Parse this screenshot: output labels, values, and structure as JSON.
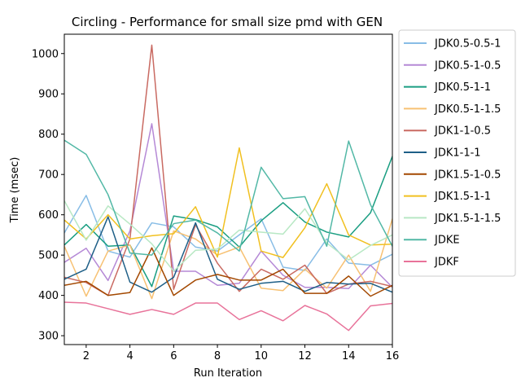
{
  "chart_data": {
    "type": "line",
    "title": "Circling - Performance for small size pmd with GEN",
    "xlabel": "Run Iteration",
    "ylabel": "Time (msec)",
    "xlim": [
      1,
      16
    ],
    "ylim": [
      278,
      1048
    ],
    "xticks": [
      2,
      4,
      6,
      8,
      10,
      12,
      14,
      16
    ],
    "yticks": [
      300,
      400,
      500,
      600,
      700,
      800,
      900,
      1000
    ],
    "grid": false,
    "legend_position": "outside-right",
    "x": [
      1,
      2,
      3,
      4,
      5,
      6,
      7,
      8,
      9,
      10,
      11,
      12,
      13,
      14,
      15,
      16
    ],
    "series": [
      {
        "name": "JDK0.5-0.5-1",
        "color": "#88bde6",
        "values": [
          555,
          648,
          510,
          495,
          580,
          570,
          520,
          510,
          550,
          590,
          470,
          462,
          540,
          480,
          475,
          502
        ]
      },
      {
        "name": "JDK0.5-1-0.5",
        "color": "#b589d6",
        "values": [
          482,
          517,
          437,
          560,
          826,
          460,
          460,
          425,
          430,
          510,
          450,
          420,
          420,
          417,
          475,
          420
        ]
      },
      {
        "name": "JDK0.5-1-1",
        "color": "#1a9e82",
        "values": [
          525,
          576,
          522,
          525,
          422,
          597,
          588,
          570,
          520,
          585,
          630,
          582,
          557,
          545,
          605,
          745
        ]
      },
      {
        "name": "JDK0.5-1-1.5",
        "color": "#f7c173",
        "values": [
          522,
          398,
          510,
          525,
          392,
          560,
          540,
          500,
          520,
          418,
          412,
          465,
          418,
          500,
          410,
          590
        ]
      },
      {
        "name": "JDK1-1-0.5",
        "color": "#c96a62",
        "values": [
          445,
          432,
          400,
          540,
          1021,
          415,
          575,
          480,
          410,
          465,
          440,
          475,
          405,
          428,
          435,
          422
        ]
      },
      {
        "name": "JDK1-1-1",
        "color": "#1e5f87",
        "values": [
          440,
          465,
          595,
          433,
          408,
          445,
          580,
          440,
          415,
          430,
          435,
          410,
          432,
          428,
          430,
          408
        ]
      },
      {
        "name": "JDK1.5-1-0.5",
        "color": "#a34800",
        "values": [
          425,
          435,
          400,
          407,
          518,
          400,
          438,
          452,
          438,
          438,
          465,
          405,
          405,
          448,
          398,
          425
        ]
      },
      {
        "name": "JDK1.5-1-1",
        "color": "#f1c020",
        "values": [
          587,
          540,
          600,
          540,
          548,
          553,
          620,
          495,
          766,
          510,
          494,
          568,
          677,
          550,
          525,
          527
        ]
      },
      {
        "name": "JDK1.5-1-1.5",
        "color": "#b8e8c4",
        "values": [
          635,
          537,
          622,
          577,
          528,
          460,
          512,
          515,
          562,
          557,
          552,
          615,
          530,
          488,
          524,
          550
        ]
      },
      {
        "name": "JDKE",
        "color": "#52b8a6",
        "values": [
          785,
          750,
          650,
          505,
          500,
          578,
          587,
          555,
          510,
          718,
          640,
          645,
          522,
          783,
          625,
          522
        ]
      },
      {
        "name": "JDKF",
        "color": "#e8739a",
        "values": [
          383,
          381,
          367,
          353,
          365,
          353,
          381,
          381,
          340,
          362,
          337,
          375,
          354,
          313,
          374,
          380
        ]
      }
    ]
  }
}
